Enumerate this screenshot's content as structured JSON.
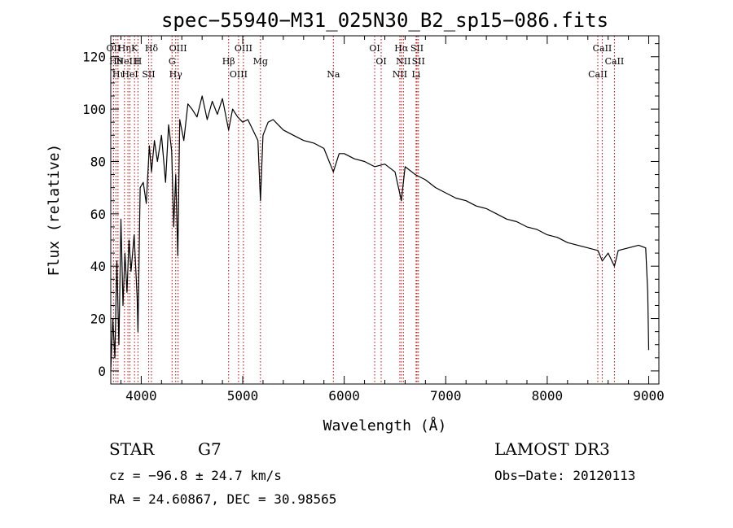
{
  "chart_data": {
    "type": "line",
    "title": "spec−55940−M31_025N30_B2_sp15−086.fits",
    "xlabel": "Wavelength (Å)",
    "ylabel": "Flux (relative)",
    "xlim": [
      3700,
      9100
    ],
    "ylim": [
      -5,
      128
    ],
    "xticks": [
      4000,
      5000,
      6000,
      7000,
      8000,
      9000
    ],
    "yticks": [
      0,
      20,
      40,
      60,
      80,
      100,
      120
    ],
    "series": [
      {
        "name": "flux",
        "x": [
          3700,
          3720,
          3740,
          3760,
          3780,
          3800,
          3820,
          3840,
          3860,
          3880,
          3900,
          3930,
          3960,
          3968,
          3990,
          4020,
          4050,
          4080,
          4101,
          4130,
          4160,
          4200,
          4240,
          4270,
          4300,
          4320,
          4340,
          4360,
          4380,
          4420,
          4460,
          4500,
          4550,
          4600,
          4650,
          4700,
          4750,
          4800,
          4861,
          4900,
          4950,
          5000,
          5050,
          5100,
          5150,
          5175,
          5200,
          5250,
          5300,
          5350,
          5400,
          5500,
          5600,
          5700,
          5800,
          5893,
          5950,
          6000,
          6100,
          6200,
          6300,
          6400,
          6500,
          6563,
          6600,
          6700,
          6800,
          6900,
          7000,
          7100,
          7200,
          7300,
          7400,
          7500,
          7600,
          7700,
          7800,
          7900,
          8000,
          8100,
          8200,
          8300,
          8400,
          8500,
          8542,
          8600,
          8662,
          8700,
          8800,
          8900,
          8970,
          8990,
          9000
        ],
        "values": [
          0,
          20,
          5,
          42,
          10,
          58,
          25,
          45,
          30,
          50,
          38,
          52,
          28,
          15,
          70,
          72,
          64,
          86,
          76,
          88,
          80,
          90,
          72,
          94,
          84,
          55,
          75,
          44,
          96,
          88,
          102,
          100,
          97,
          105,
          96,
          103,
          98,
          104,
          92,
          100,
          97,
          95,
          96,
          92,
          88,
          65,
          90,
          95,
          96,
          94,
          92,
          90,
          88,
          87,
          85,
          76,
          83,
          83,
          81,
          80,
          78,
          79,
          76,
          65,
          78,
          75,
          73,
          70,
          68,
          66,
          65,
          63,
          62,
          60,
          58,
          57,
          55,
          54,
          52,
          51,
          49,
          48,
          47,
          46,
          42,
          45,
          40,
          46,
          47,
          48,
          47,
          30,
          8
        ]
      }
    ],
    "line_markers": [
      {
        "wavelength": 3727,
        "label": "OII"
      },
      {
        "wavelength": 3750,
        "label": "Hθ"
      },
      {
        "wavelength": 3771,
        "label": "Hι"
      },
      {
        "wavelength": 3835,
        "label": "Hη"
      },
      {
        "wavelength": 3869,
        "label": "NeIII"
      },
      {
        "wavelength": 3889,
        "label": "HeI"
      },
      {
        "wavelength": 3934,
        "label": "K"
      },
      {
        "wavelength": 3968,
        "label": "H"
      },
      {
        "wavelength": 4073,
        "label": "SII"
      },
      {
        "wavelength": 4101,
        "label": "Hδ"
      },
      {
        "wavelength": 4304,
        "label": "G"
      },
      {
        "wavelength": 4340,
        "label": "Hγ"
      },
      {
        "wavelength": 4363,
        "label": "OIII"
      },
      {
        "wavelength": 4861,
        "label": "Hβ"
      },
      {
        "wavelength": 4959,
        "label": "OIII"
      },
      {
        "wavelength": 5007,
        "label": "OIII"
      },
      {
        "wavelength": 5175,
        "label": "Mg"
      },
      {
        "wavelength": 5893,
        "label": "Na"
      },
      {
        "wavelength": 6300,
        "label": "OI"
      },
      {
        "wavelength": 6364,
        "label": "OI"
      },
      {
        "wavelength": 6548,
        "label": "NII"
      },
      {
        "wavelength": 6563,
        "label": "Hα"
      },
      {
        "wavelength": 6583,
        "label": "NII"
      },
      {
        "wavelength": 6708,
        "label": "Li"
      },
      {
        "wavelength": 6717,
        "label": "SII"
      },
      {
        "wavelength": 6731,
        "label": "SII"
      },
      {
        "wavelength": 8498,
        "label": "CaII"
      },
      {
        "wavelength": 8542,
        "label": "CaII"
      },
      {
        "wavelength": 8662,
        "label": "CaII"
      }
    ],
    "grid": false
  },
  "info": {
    "class_label": "STAR",
    "subclass": "G7",
    "survey": "LAMOST DR3",
    "redshift": "cz = −96.8 ± 24.7 km/s",
    "obs_date": "Obs−Date: 20120113",
    "coordinates": "RA =  24.60867, DEC =  30.98565"
  },
  "colors": {
    "foreground": "#000000",
    "line_marker": "#c00000",
    "background": "#ffffff"
  }
}
